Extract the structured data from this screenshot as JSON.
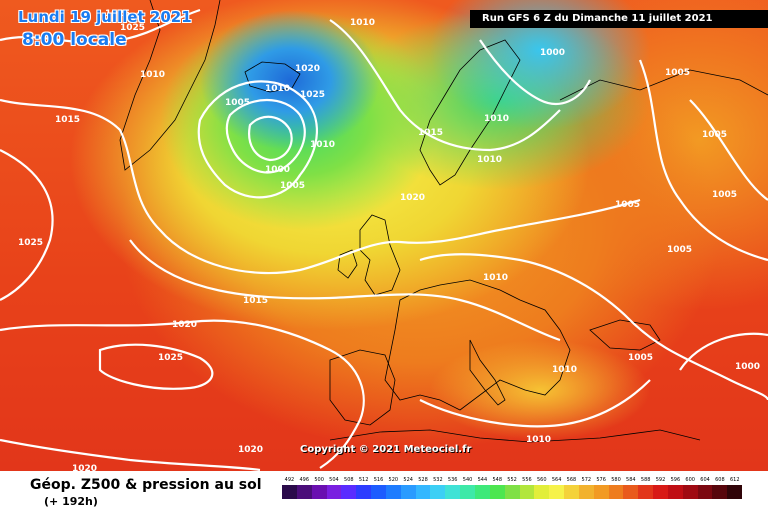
{
  "map": {
    "date_label": "Lundi 19 juillet 2021",
    "time_label": "8:00 locale",
    "run_banner": "Run GFS 6 Z du Dimanche 11 juillet 2021",
    "copyright": "Copyright © 2021 Meteociel.fr",
    "pressure_labels": [
      "1025",
      "1010",
      "1010",
      "1000",
      "1025",
      "1015",
      "1005",
      "1020",
      "1010",
      "1010",
      "1020",
      "1025",
      "1015",
      "1000",
      "1005",
      "1010",
      "1010",
      "1005",
      "1005",
      "1005",
      "1005",
      "1020",
      "1015",
      "1025",
      "1010",
      "1005",
      "1000",
      "1005",
      "1020",
      "1020",
      "1025",
      "1015",
      "1010",
      "1010"
    ],
    "colors": {
      "deep_blue": "#1e6ad8",
      "green": "#39d96b",
      "yellow": "#f6f24a",
      "orange": "#f29a23",
      "red": "#e2361a",
      "isobar": "#ffffff",
      "coast": "#000000"
    }
  },
  "footer": {
    "title": "Géop. Z500 & pression au sol",
    "subtitle": "(+ 192h)",
    "scale_values": [
      "492",
      "496",
      "500",
      "504",
      "508",
      "512",
      "516",
      "520",
      "524",
      "528",
      "532",
      "536",
      "540",
      "544",
      "548",
      "552",
      "556",
      "560",
      "564",
      "568",
      "572",
      "576",
      "580",
      "584",
      "588",
      "592",
      "596",
      "600",
      "604",
      "608",
      "612"
    ],
    "scale_colors": [
      "#2a0a4a",
      "#4b0d7a",
      "#6a0fb0",
      "#7a1fe0",
      "#5a2cff",
      "#2d3cff",
      "#1d5cff",
      "#1e7cff",
      "#2a9bff",
      "#34b7ff",
      "#3ccff5",
      "#40e2d6",
      "#3ee9a8",
      "#3ee97a",
      "#4de650",
      "#7fe046",
      "#b2e63c",
      "#e2ee3a",
      "#f6f24a",
      "#f4d23a",
      "#f2b22e",
      "#f29a23",
      "#ee7c1e",
      "#e95a1c",
      "#e2361a",
      "#d81a16",
      "#c00e14",
      "#a00a12",
      "#7c0810",
      "#58060c",
      "#300408"
    ]
  }
}
